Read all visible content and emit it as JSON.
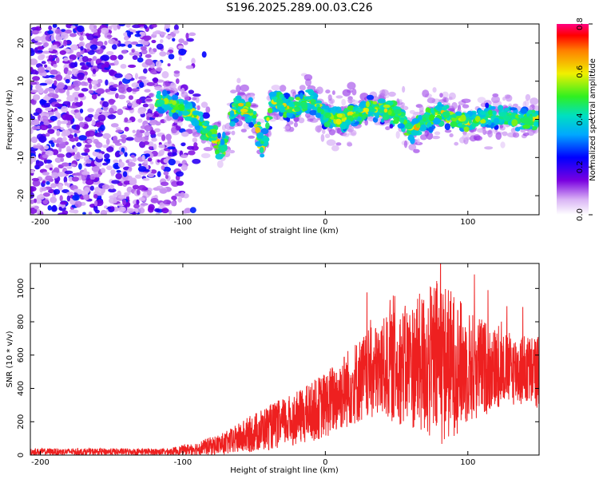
{
  "title": "S196.2025.289.00.03.C26",
  "chart_data": [
    {
      "type": "heatmap",
      "name": "spectrogram",
      "xlabel": "Height of straight line (km)",
      "ylabel": "Frequency (Hz)",
      "xlim": [
        -207,
        150
      ],
      "ylim": [
        -25,
        25
      ],
      "xticks": [
        -200,
        -100,
        0,
        100
      ],
      "yticks": [
        -20,
        -10,
        0,
        10,
        20
      ],
      "colorbar": {
        "label": "Normalized spectral amplitude",
        "range": [
          0.0,
          0.8
        ],
        "ticks": [
          "0.0",
          "0.2",
          "0.4",
          "0.6",
          "0.8"
        ]
      },
      "signal_band": [
        {
          "x": -115,
          "f": 5
        },
        {
          "x": -95,
          "f": 2
        },
        {
          "x": -80,
          "f": -4
        },
        {
          "x": -72,
          "f": -8
        },
        {
          "x": -62,
          "f": 4
        },
        {
          "x": -50,
          "f": 1
        },
        {
          "x": -44,
          "f": -8
        },
        {
          "x": -37,
          "f": 5
        },
        {
          "x": -25,
          "f": 3
        },
        {
          "x": -10,
          "f": 5
        },
        {
          "x": 0,
          "f": 1
        },
        {
          "x": 15,
          "f": 0
        },
        {
          "x": 30,
          "f": 3
        },
        {
          "x": 50,
          "f": 2
        },
        {
          "x": 60,
          "f": -3
        },
        {
          "x": 80,
          "f": 2
        },
        {
          "x": 100,
          "f": -1
        },
        {
          "x": 120,
          "f": 1
        },
        {
          "x": 140,
          "f": 0
        }
      ]
    },
    {
      "type": "line",
      "name": "snr",
      "xlabel": "Height of straight line (km)",
      "ylabel": "SNR (10 * v/v)",
      "xlim": [
        -207,
        150
      ],
      "ylim": [
        0,
        1150
      ],
      "xticks": [
        -200,
        -100,
        0,
        100
      ],
      "yticks": [
        0,
        200,
        400,
        600,
        800,
        1000
      ],
      "color": "#ee2020",
      "envelope": [
        {
          "x": -207,
          "mean": 20,
          "spread": 20
        },
        {
          "x": -110,
          "mean": 20,
          "spread": 20
        },
        {
          "x": -90,
          "mean": 40,
          "spread": 40
        },
        {
          "x": -70,
          "mean": 70,
          "spread": 70
        },
        {
          "x": -45,
          "mean": 150,
          "spread": 130
        },
        {
          "x": -20,
          "mean": 220,
          "spread": 160
        },
        {
          "x": 0,
          "mean": 300,
          "spread": 200
        },
        {
          "x": 20,
          "mean": 430,
          "spread": 250
        },
        {
          "x": 40,
          "mean": 520,
          "spread": 300
        },
        {
          "x": 60,
          "mean": 540,
          "spread": 380
        },
        {
          "x": 80,
          "mean": 560,
          "spread": 520
        },
        {
          "x": 100,
          "mean": 530,
          "spread": 350
        },
        {
          "x": 125,
          "mean": 520,
          "spread": 220
        },
        {
          "x": 150,
          "mean": 500,
          "spread": 220
        }
      ]
    }
  ]
}
